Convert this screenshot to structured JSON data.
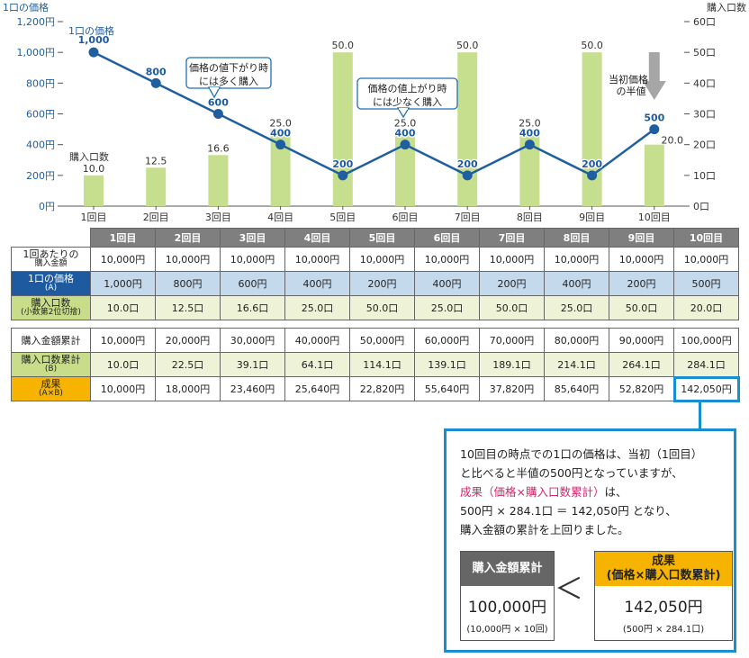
{
  "chart_data": {
    "type": "bar",
    "categories": [
      "1回目",
      "2回目",
      "3回目",
      "4回目",
      "5回目",
      "6回目",
      "7回目",
      "8回目",
      "9回目",
      "10回目"
    ],
    "series": [
      {
        "name": "購入口数",
        "type": "bar",
        "axis": "right",
        "values": [
          10.0,
          12.5,
          16.6,
          25.0,
          50.0,
          25.0,
          50.0,
          25.0,
          50.0,
          20.0
        ],
        "labels": [
          "10.0",
          "12.5",
          "16.6",
          "25.0",
          "50.0",
          "25.0",
          "50.0",
          "25.0",
          "50.0",
          "20.0"
        ]
      },
      {
        "name": "1口の価格",
        "type": "line",
        "axis": "left",
        "values": [
          1000,
          800,
          600,
          400,
          200,
          400,
          200,
          400,
          200,
          500
        ],
        "labels": [
          "1,000",
          "800",
          "600",
          "400",
          "200",
          "400",
          "200",
          "400",
          "200",
          "500"
        ]
      }
    ],
    "left_axis": {
      "label": "1口の価格",
      "min": 0,
      "max": 1200,
      "ticks": [
        "0円",
        "200円",
        "400円",
        "600円",
        "800円",
        "1,000円",
        "1,200円"
      ]
    },
    "right_axis": {
      "label": "購入口数",
      "min": 0,
      "max": 60,
      "ticks": [
        "0口",
        "10口",
        "20口",
        "30口",
        "40口",
        "50口",
        "60口"
      ]
    },
    "annotations": {
      "line_label": "1口の価格",
      "bar_label": "購入口数",
      "callout_down": [
        "価格の値下がり時",
        "には多く購入"
      ],
      "callout_up": [
        "価格の値上がり時",
        "には少なく購入"
      ],
      "half": [
        "当初価格",
        "の半値"
      ]
    },
    "colors": {
      "bar": "#c5df8e",
      "line": "#1f5fa0",
      "axis_text": "#1f5fa0",
      "arrow": "#a6a6a6"
    }
  },
  "table": {
    "headers": [
      "1回目",
      "2回目",
      "3回目",
      "4回目",
      "5回目",
      "6回目",
      "7回目",
      "8回目",
      "9回目",
      "10回目"
    ],
    "rows": [
      {
        "label": [
          "1回あたりの",
          "購入金額"
        ],
        "style": "white",
        "values": [
          "10,000円",
          "10,000円",
          "10,000円",
          "10,000円",
          "10,000円",
          "10,000円",
          "10,000円",
          "10,000円",
          "10,000円",
          "10,000円"
        ]
      },
      {
        "label": [
          "1口の価格",
          "(A)"
        ],
        "style": "blue",
        "values": [
          "1,000円",
          "800円",
          "600円",
          "400円",
          "200円",
          "400円",
          "200円",
          "400円",
          "200円",
          "500円"
        ]
      },
      {
        "label": [
          "購入口数",
          "(小数第2位切捨)"
        ],
        "style": "green",
        "values": [
          "10.0口",
          "12.5口",
          "16.6口",
          "25.0口",
          "50.0口",
          "25.0口",
          "50.0口",
          "25.0口",
          "50.0口",
          "20.0口"
        ]
      }
    ],
    "rows2": [
      {
        "label": [
          "購入金額累計"
        ],
        "style": "white",
        "values": [
          "10,000円",
          "20,000円",
          "30,000円",
          "40,000円",
          "50,000円",
          "60,000円",
          "70,000円",
          "80,000円",
          "90,000円",
          "100,000円"
        ]
      },
      {
        "label": [
          "購入口数累計",
          "(B)"
        ],
        "style": "green",
        "values": [
          "10.0口",
          "22.5口",
          "39.1口",
          "64.1口",
          "114.1口",
          "139.1口",
          "189.1口",
          "214.1口",
          "264.1口",
          "284.1口"
        ]
      },
      {
        "label": [
          "成果",
          "(A×B)"
        ],
        "style": "orange",
        "values": [
          "10,000円",
          "18,000円",
          "23,460円",
          "25,640円",
          "22,820円",
          "55,640円",
          "37,820円",
          "85,640円",
          "52,820円",
          "142,050円"
        ]
      }
    ]
  },
  "info": {
    "line1": "10回目の時点での1口の価格は、当初（1回目）",
    "line2": "と比べると半値の500円となっていますが、",
    "line3_red": "成果（価格×購入口数累計）",
    "line3_rest": "は、",
    "line4": "500円 × 284.1口 ＝ 142,050円 となり、",
    "line5": "購入金額の累計を上回りました。",
    "left_box": {
      "title": "購入金額累計",
      "value": "100,000円",
      "formula": "(10,000円 × 10回)"
    },
    "lt": "＜",
    "right_box": {
      "title1": "成果",
      "title2": "(価格×購入口数累計)",
      "value": "142,050円",
      "formula": "(500円 × 284.1口)"
    }
  }
}
